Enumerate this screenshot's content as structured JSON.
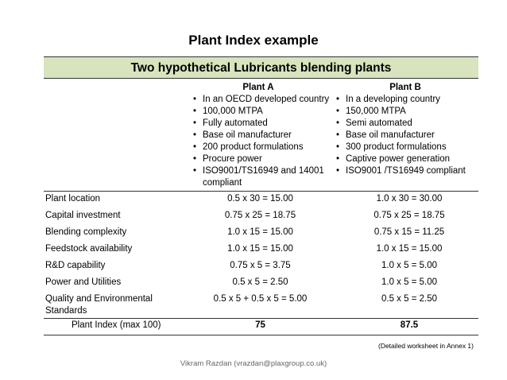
{
  "title": "Plant Index example",
  "banner": "Two hypothetical Lubricants blending plants",
  "plant_a": {
    "name": "Plant A",
    "bullets": [
      "In an OECD developed country",
      "100,000 MTPA",
      "Fully automated",
      "Base oil manufacturer",
      "200 product formulations",
      "Procure power",
      "ISO9001/TS16949  and 14001 compliant"
    ]
  },
  "plant_b": {
    "name": "Plant B",
    "bullets": [
      "In a developing country",
      "150,000 MTPA",
      "Semi automated",
      "Base oil manufacturer",
      "300 product formulations",
      "Captive power generation",
      "ISO9001 /TS16949 compliant"
    ]
  },
  "rows": [
    {
      "label": "Plant location",
      "a": "0.5 x 30 = 15.00",
      "b": "1.0 x 30 = 30.00"
    },
    {
      "label": "Capital investment",
      "a": "0.75 x 25 = 18.75",
      "b": "0.75 x 25 =  18.75"
    },
    {
      "label": "Blending complexity",
      "a": "1.0 x 15 = 15.00",
      "b": "0.75 x 15 = 11.25"
    },
    {
      "label": "Feedstock availability",
      "a": "1.0 x 15 = 15.00",
      "b": "1.0  x 15 = 15.00"
    },
    {
      "label": "R&D capability",
      "a": "0.75 x 5 = 3.75",
      "b": "1.0  x 5 = 5.00"
    },
    {
      "label": "Power and Utilities",
      "a": "0.5 x 5 = 2.50",
      "b": "1.0  x 5 = 5.00"
    },
    {
      "label": "Quality and Environmental Standards",
      "a": "0.5 x 5 + 0.5 x 5 = 5.00",
      "b": "0.5 x 5 = 2.50"
    }
  ],
  "index": {
    "label": "Plant Index (max 100)",
    "a": "75",
    "b": "87.5"
  },
  "note": "(Detailed worksheet in Annex 1)",
  "footer": "Vikram Razdan (vrazdan@plaxgroup.co.uk)"
}
